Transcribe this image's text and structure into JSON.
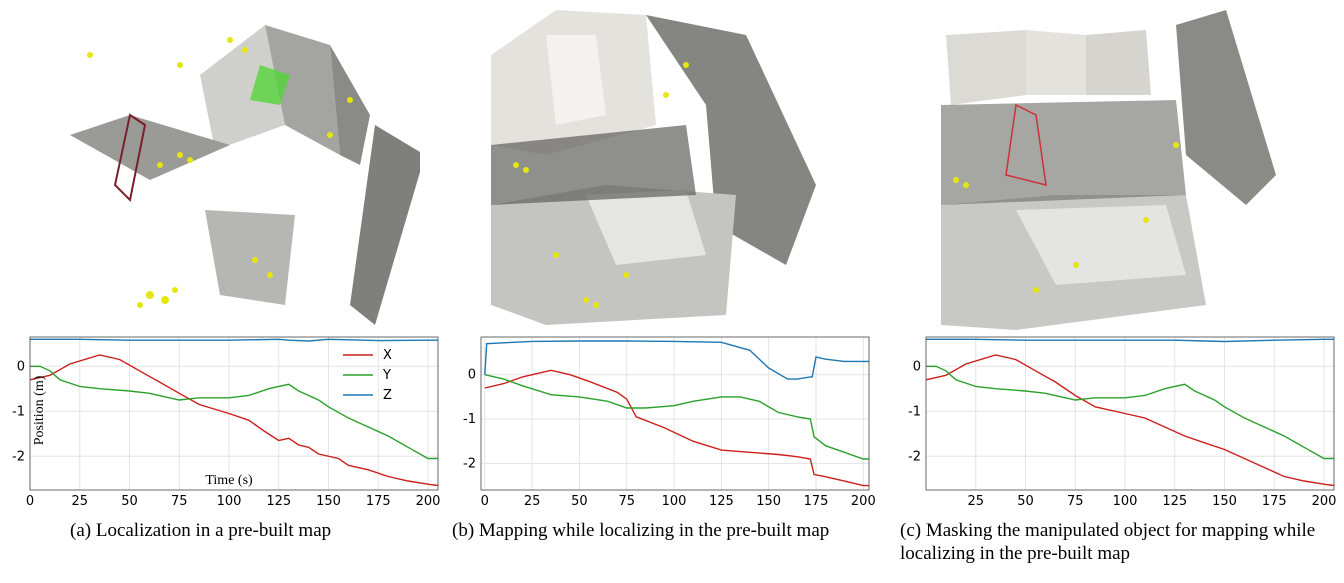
{
  "colors": {
    "x": "#cc1f1a",
    "y": "#2ca02c",
    "z": "#1f77b4",
    "grid": "#e3e3e3"
  },
  "panels": [
    {
      "caption": "(a) Localization in a pre-built map"
    },
    {
      "caption": "(b) Mapping while localizing in the pre-built map"
    },
    {
      "caption": "(c) Masking the manipulated object for mapping while localizing in the pre-built map"
    }
  ],
  "chart_data": [
    {
      "type": "line",
      "xlim": [
        0,
        205
      ],
      "ylim": [
        -2.75,
        0.65
      ],
      "xticks": [
        0,
        25,
        50,
        75,
        100,
        125,
        150,
        175,
        200
      ],
      "yticks": [
        0,
        -1,
        -2
      ],
      "xlabel": "Time (s)",
      "ylabel": "Position (m)",
      "legend": "top-right",
      "series": [
        {
          "name": "X",
          "x": [
            0,
            10,
            20,
            35,
            45,
            55,
            65,
            75,
            85,
            100,
            110,
            118,
            125,
            130,
            135,
            140,
            145,
            155,
            160,
            170,
            180,
            190,
            200,
            205
          ],
          "y": [
            -0.3,
            -0.2,
            0.05,
            0.25,
            0.15,
            -0.1,
            -0.35,
            -0.6,
            -0.85,
            -1.05,
            -1.2,
            -1.45,
            -1.65,
            -1.6,
            -1.75,
            -1.8,
            -1.95,
            -2.05,
            -2.2,
            -2.3,
            -2.45,
            -2.55,
            -2.62,
            -2.65
          ]
        },
        {
          "name": "Y",
          "x": [
            0,
            5,
            10,
            15,
            25,
            35,
            50,
            60,
            75,
            85,
            100,
            110,
            120,
            130,
            135,
            145,
            150,
            160,
            170,
            180,
            190,
            200,
            205
          ],
          "y": [
            0.0,
            0.0,
            -0.1,
            -0.3,
            -0.45,
            -0.5,
            -0.55,
            -0.6,
            -0.75,
            -0.7,
            -0.7,
            -0.65,
            -0.5,
            -0.4,
            -0.55,
            -0.75,
            -0.9,
            -1.15,
            -1.35,
            -1.55,
            -1.8,
            -2.05,
            -2.05
          ]
        },
        {
          "name": "Z",
          "x": [
            0,
            25,
            50,
            75,
            100,
            125,
            130,
            140,
            150,
            175,
            200,
            205
          ],
          "y": [
            0.6,
            0.6,
            0.58,
            0.58,
            0.58,
            0.6,
            0.58,
            0.56,
            0.6,
            0.57,
            0.58,
            0.58
          ]
        }
      ]
    },
    {
      "type": "line",
      "xlim": [
        -2,
        203
      ],
      "ylim": [
        -2.6,
        0.85
      ],
      "xticks": [
        0,
        25,
        50,
        75,
        100,
        125,
        150,
        175,
        200
      ],
      "yticks": [
        0,
        -1,
        -2
      ],
      "xlabel": "",
      "ylabel": "",
      "series": [
        {
          "x": [
            0,
            10,
            20,
            35,
            45,
            55,
            70,
            75,
            80,
            95,
            110,
            125,
            140,
            155,
            165,
            172,
            174,
            180,
            190,
            200,
            203
          ],
          "y": [
            -0.3,
            -0.2,
            -0.05,
            0.1,
            0.0,
            -0.15,
            -0.4,
            -0.55,
            -0.95,
            -1.2,
            -1.5,
            -1.7,
            -1.75,
            -1.8,
            -1.85,
            -1.9,
            -2.25,
            -2.3,
            -2.4,
            -2.5,
            -2.5
          ]
        },
        {
          "x": [
            0,
            10,
            20,
            35,
            50,
            65,
            75,
            85,
            100,
            110,
            125,
            135,
            145,
            155,
            165,
            172,
            174,
            180,
            190,
            200,
            203
          ],
          "y": [
            0.0,
            -0.1,
            -0.25,
            -0.45,
            -0.5,
            -0.6,
            -0.75,
            -0.75,
            -0.7,
            -0.6,
            -0.5,
            -0.5,
            -0.6,
            -0.85,
            -0.95,
            -1.0,
            -1.4,
            -1.6,
            -1.75,
            -1.9,
            -1.9
          ]
        },
        {
          "x": [
            0,
            1,
            10,
            25,
            50,
            75,
            100,
            125,
            140,
            150,
            160,
            165,
            172,
            173,
            175,
            180,
            190,
            200,
            203
          ],
          "y": [
            0.0,
            0.7,
            0.72,
            0.75,
            0.76,
            0.76,
            0.75,
            0.73,
            0.55,
            0.15,
            -0.1,
            -0.1,
            -0.05,
            -0.05,
            0.4,
            0.35,
            0.3,
            0.3,
            0.3
          ]
        }
      ]
    },
    {
      "type": "line",
      "xlim": [
        0,
        205
      ],
      "ylim": [
        -2.75,
        0.65
      ],
      "xticks": [
        25,
        50,
        75,
        100,
        125,
        150,
        175,
        200
      ],
      "yticks": [
        0,
        -1,
        -2
      ],
      "xlabel": "",
      "ylabel": "",
      "series": [
        {
          "x": [
            0,
            10,
            20,
            35,
            45,
            55,
            65,
            75,
            85,
            100,
            110,
            120,
            130,
            140,
            150,
            160,
            170,
            180,
            190,
            200,
            205
          ],
          "y": [
            -0.3,
            -0.2,
            0.05,
            0.25,
            0.15,
            -0.1,
            -0.35,
            -0.65,
            -0.9,
            -1.05,
            -1.15,
            -1.35,
            -1.55,
            -1.7,
            -1.85,
            -2.05,
            -2.25,
            -2.45,
            -2.55,
            -2.62,
            -2.65
          ]
        },
        {
          "x": [
            0,
            5,
            10,
            15,
            25,
            35,
            50,
            60,
            75,
            85,
            100,
            110,
            120,
            130,
            135,
            145,
            150,
            160,
            170,
            180,
            190,
            200,
            205
          ],
          "y": [
            0.0,
            0.0,
            -0.1,
            -0.3,
            -0.45,
            -0.5,
            -0.55,
            -0.6,
            -0.75,
            -0.7,
            -0.7,
            -0.65,
            -0.5,
            -0.4,
            -0.55,
            -0.75,
            -0.9,
            -1.15,
            -1.35,
            -1.55,
            -1.8,
            -2.05,
            -2.05
          ]
        },
        {
          "x": [
            0,
            25,
            50,
            75,
            100,
            125,
            140,
            150,
            175,
            200,
            205
          ],
          "y": [
            0.6,
            0.6,
            0.58,
            0.58,
            0.58,
            0.58,
            0.56,
            0.55,
            0.58,
            0.6,
            0.6
          ]
        }
      ]
    }
  ]
}
